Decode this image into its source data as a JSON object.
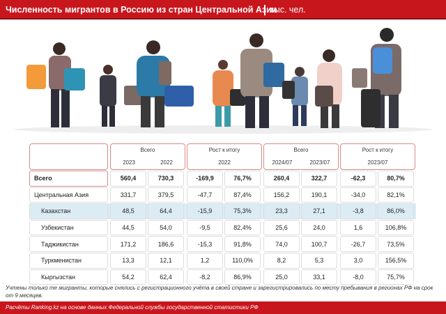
{
  "header": {
    "title": "Численность мигрантов в Россию из стран Центральной Азии",
    "unit": "тыс. чел."
  },
  "table": {
    "groups": [
      {
        "title": "Всего",
        "subheads": [
          "2023",
          "2022"
        ]
      },
      {
        "title": "Рост к итогу",
        "subheads": [
          "2022"
        ]
      },
      {
        "title": "Всего",
        "subheads": [
          "2024/07",
          "2023/07"
        ]
      },
      {
        "title": "Рост к итогу",
        "subheads": [
          "2023/07"
        ]
      }
    ],
    "rows": [
      {
        "label": "Всего",
        "cells": [
          "560,4",
          "730,3",
          "-169,9",
          "76,7%",
          "260,4",
          "322,7",
          "-62,3",
          "80,7%"
        ]
      },
      {
        "label": "Центральная Азия",
        "cells": [
          "331,7",
          "379,5",
          "-47,7",
          "87,4%",
          "156,2",
          "190,1",
          "-34,0",
          "82,1%"
        ]
      },
      {
        "label": "Казахстан",
        "cells": [
          "48,5",
          "64,4",
          "-15,9",
          "75,3%",
          "23,3",
          "27,1",
          "-3,8",
          "86,0%"
        ]
      },
      {
        "label": "Узбекистан",
        "cells": [
          "44,5",
          "54,0",
          "-9,5",
          "82,4%",
          "25,6",
          "24,0",
          "1,6",
          "106,8%"
        ]
      },
      {
        "label": "Таджикистан",
        "cells": [
          "171,2",
          "186,6",
          "-15,3",
          "91,8%",
          "74,0",
          "100,7",
          "-26,7",
          "73,5%"
        ]
      },
      {
        "label": "Туркменистан",
        "cells": [
          "13,3",
          "12,1",
          "1,2",
          "110,0%",
          "8,2",
          "5,3",
          "3,0",
          "156,5%"
        ]
      },
      {
        "label": "Кыргызстан",
        "cells": [
          "54,2",
          "62,4",
          "-8,2",
          "86,9%",
          "25,0",
          "33,1",
          "-8,0",
          "75,7%"
        ]
      }
    ]
  },
  "note": "Учтены только те мигранты, которые снялись с регистрационного учёта в своей стране и зарегистрировались по месту пребывания в регионах РФ на срок от 9 месяцев.",
  "footer": {
    "source": "Расчёты Ranking.kz на основе данных Федеральной службы государственной статистики РФ"
  }
}
